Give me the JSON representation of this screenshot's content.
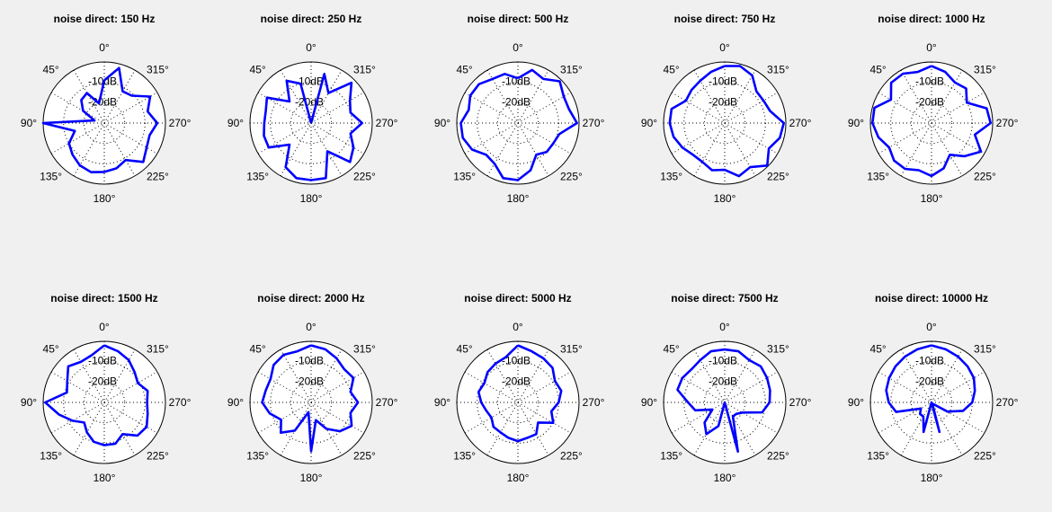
{
  "chart_data": [
    {
      "type": "line",
      "title": "noise direct: 150 Hz",
      "theta_labels": [
        "0°",
        "45°",
        "90°",
        "135°",
        "180°",
        "225°",
        "270°",
        "315°"
      ],
      "r_labels": [
        "-10dB",
        "-20dB"
      ],
      "rlim": [
        -30,
        0
      ],
      "theta_deg": [
        0,
        15,
        30,
        45,
        60,
        75,
        90,
        105,
        120,
        135,
        150,
        165,
        180,
        195,
        210,
        225,
        240,
        255,
        270,
        285,
        300,
        315,
        330,
        345
      ],
      "r_db": [
        -9,
        -20,
        -13,
        -14,
        -18,
        -25,
        0,
        -15,
        -10,
        -8,
        -6,
        -5,
        -6,
        -7,
        -9,
        -3,
        -6,
        -7,
        -4,
        -8,
        -4,
        -11,
        -12,
        -2
      ]
    },
    {
      "type": "line",
      "title": "noise direct: 250 Hz",
      "theta_labels": [
        "0°",
        "45°",
        "90°",
        "135°",
        "180°",
        "225°",
        "270°",
        "315°"
      ],
      "r_labels": [
        "-10dB",
        "-20dB"
      ],
      "rlim": [
        -30,
        0
      ],
      "theta_deg": [
        0,
        15,
        30,
        45,
        60,
        75,
        90,
        105,
        120,
        135,
        150,
        165,
        180,
        195,
        210,
        225,
        240,
        255,
        270,
        285,
        300,
        315,
        330,
        345
      ],
      "r_db": [
        -30,
        -10,
        -6,
        -15,
        -5,
        -7,
        -7,
        -6,
        -6,
        -15,
        -5,
        -2,
        -2,
        -2,
        -14,
        -3,
        -6,
        -10,
        -5,
        -10,
        -8,
        -2,
        -13,
        -5
      ]
    },
    {
      "type": "line",
      "title": "noise direct: 500 Hz",
      "theta_labels": [
        "0°",
        "45°",
        "90°",
        "135°",
        "180°",
        "225°",
        "270°",
        "315°"
      ],
      "r_labels": [
        "-10dB",
        "-20dB"
      ],
      "rlim": [
        -30,
        0
      ],
      "theta_deg": [
        0,
        15,
        30,
        45,
        60,
        75,
        90,
        105,
        120,
        135,
        150,
        165,
        180,
        195,
        210,
        225,
        240,
        255,
        270,
        285,
        300,
        315,
        330,
        345
      ],
      "r_db": [
        -8,
        -5,
        -5,
        -3,
        -3,
        -5,
        -2,
        -2,
        -4,
        -8,
        -7,
        -2,
        -2,
        -6,
        -12,
        -10,
        -10,
        -9,
        -1,
        -4,
        -4,
        -1,
        -5,
        -3
      ]
    },
    {
      "type": "line",
      "title": "noise direct: 750 Hz",
      "theta_labels": [
        "0°",
        "45°",
        "90°",
        "135°",
        "180°",
        "225°",
        "270°",
        "315°"
      ],
      "r_labels": [
        "-10dB",
        "-20dB"
      ],
      "rlim": [
        -30,
        0
      ],
      "theta_deg": [
        0,
        15,
        30,
        45,
        60,
        75,
        90,
        105,
        120,
        135,
        150,
        165,
        180,
        195,
        210,
        225,
        240,
        255,
        270,
        285,
        300,
        315,
        330,
        345
      ],
      "r_db": [
        -2,
        -4,
        -6,
        -7,
        -8,
        -3,
        -3,
        -4,
        -6,
        -8,
        -8,
        -6,
        -7,
        -3,
        -5,
        -0.5,
        -5,
        -2,
        -1,
        -7,
        -8,
        -8,
        -3,
        -1
      ]
    },
    {
      "type": "line",
      "title": "noise direct: 1000 Hz",
      "theta_labels": [
        "0°",
        "45°",
        "90°",
        "135°",
        "180°",
        "225°",
        "270°",
        "315°"
      ],
      "r_labels": [
        "-10dB",
        "-20dB"
      ],
      "rlim": [
        -30,
        0
      ],
      "theta_deg": [
        0,
        15,
        30,
        45,
        60,
        75,
        90,
        105,
        120,
        135,
        150,
        165,
        180,
        195,
        210,
        225,
        240,
        255,
        270,
        285,
        300,
        315,
        330,
        345
      ],
      "r_db": [
        -2,
        -4,
        -2,
        -2,
        -7,
        -1,
        -1,
        -3,
        -6,
        -4,
        -4,
        -6,
        -4,
        -7,
        -12,
        -7,
        -2,
        -8,
        -1,
        -2,
        -10,
        -6,
        -7,
        -4
      ]
    },
    {
      "type": "line",
      "title": "noise direct: 1500 Hz",
      "theta_labels": [
        "0°",
        "45°",
        "90°",
        "135°",
        "180°",
        "225°",
        "270°",
        "315°"
      ],
      "r_labels": [
        "-10dB",
        "-20dB"
      ],
      "rlim": [
        -30,
        0
      ],
      "theta_deg": [
        0,
        15,
        30,
        45,
        60,
        75,
        90,
        105,
        120,
        135,
        150,
        165,
        180,
        195,
        210,
        225,
        240,
        255,
        270,
        285,
        300,
        315,
        330,
        345
      ],
      "r_db": [
        -2,
        -6,
        -7,
        -5,
        -9,
        -11,
        -1,
        -7,
        -12,
        -16,
        -13,
        -10,
        -9,
        -9,
        -12,
        -7,
        -6,
        -8,
        -9,
        -8,
        -11,
        -9,
        -6,
        -4
      ]
    },
    {
      "type": "line",
      "title": "noise direct: 2000 Hz",
      "theta_labels": [
        "0°",
        "45°",
        "90°",
        "135°",
        "180°",
        "225°",
        "270°",
        "315°"
      ],
      "r_labels": [
        "-10dB",
        "-20dB"
      ],
      "rlim": [
        -30,
        0
      ],
      "theta_deg": [
        0,
        15,
        30,
        45,
        60,
        75,
        90,
        105,
        120,
        135,
        150,
        165,
        180,
        195,
        210,
        225,
        240,
        255,
        270,
        285,
        300,
        315,
        330,
        345
      ],
      "r_db": [
        -2,
        -4,
        -3,
        -4,
        -7,
        -7,
        -6,
        -9,
        -13,
        -9,
        -14,
        -25,
        -6,
        -21,
        -15,
        -10,
        -7,
        -10,
        -7,
        -10,
        -6,
        -7,
        -5,
        -3
      ]
    },
    {
      "type": "line",
      "title": "noise direct: 5000 Hz",
      "theta_labels": [
        "0°",
        "45°",
        "90°",
        "135°",
        "180°",
        "225°",
        "270°",
        "315°"
      ],
      "r_labels": [
        "-10dB",
        "-20dB"
      ],
      "rlim": [
        -30,
        0
      ],
      "theta_deg": [
        0,
        15,
        30,
        45,
        60,
        75,
        90,
        105,
        120,
        135,
        150,
        165,
        180,
        195,
        210,
        225,
        240,
        255,
        270,
        285,
        300,
        315,
        330,
        345
      ],
      "r_db": [
        -2,
        -7,
        -8,
        -9,
        -11,
        -10,
        -12,
        -14,
        -15,
        -13,
        -13,
        -12,
        -11,
        -12,
        -12,
        -16,
        -10,
        -13,
        -10,
        -8,
        -9,
        -6,
        -5,
        -4
      ]
    },
    {
      "type": "line",
      "title": "noise direct: 7500 Hz",
      "theta_labels": [
        "0°",
        "45°",
        "90°",
        "135°",
        "180°",
        "225°",
        "270°",
        "315°"
      ],
      "r_labels": [
        "-10dB",
        "-20dB"
      ],
      "rlim": [
        -30,
        0
      ],
      "theta_deg": [
        0,
        15,
        30,
        45,
        60,
        75,
        90,
        105,
        120,
        135,
        150,
        165,
        180,
        195,
        210,
        225,
        240,
        255,
        270,
        285,
        300,
        315,
        330,
        345
      ],
      "r_db": [
        -4,
        -4,
        -6,
        -7,
        -6,
        -6,
        -12,
        -15,
        -23,
        -16,
        -12,
        -18,
        -30,
        -5,
        -22,
        -22,
        -20,
        -11,
        -8,
        -7,
        -6,
        -5,
        -6,
        -4
      ]
    },
    {
      "type": "line",
      "title": "noise direct: 10000 Hz",
      "theta_labels": [
        "0°",
        "45°",
        "90°",
        "135°",
        "180°",
        "225°",
        "270°",
        "315°"
      ],
      "r_labels": [
        "-10dB",
        "-20dB"
      ],
      "rlim": [
        -30,
        0
      ],
      "theta_deg": [
        0,
        15,
        30,
        45,
        60,
        75,
        90,
        105,
        120,
        135,
        150,
        165,
        180,
        195,
        210,
        225,
        240,
        255,
        270,
        285,
        300,
        315,
        330,
        345
      ],
      "r_db": [
        -2,
        -3,
        -4,
        -5,
        -6,
        -7,
        -9,
        -12,
        -24,
        -22,
        -22,
        -15,
        -30,
        -15,
        -29,
        -29,
        -21,
        -14,
        -10,
        -8,
        -6,
        -5,
        -4,
        -3
      ]
    }
  ]
}
